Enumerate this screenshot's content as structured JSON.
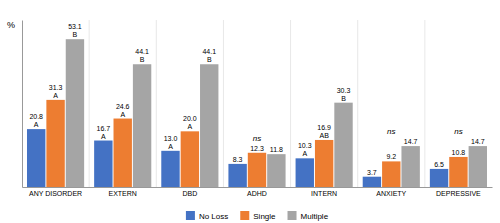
{
  "chart_data": {
    "type": "bar",
    "ylabel": "%",
    "categories": [
      "ANY DISORDER",
      "EXTERN",
      "DBD",
      "ADHD",
      "INTERN",
      "ANXIETY",
      "DEPRESSIVE"
    ],
    "series": [
      {
        "name": "No Loss",
        "color": "#4472C4",
        "values": [
          20.8,
          16.7,
          13.0,
          8.3,
          10.3,
          3.7,
          6.5
        ],
        "value_labels": [
          "20.8",
          "16.7",
          "13.0",
          "8.3",
          "10.3",
          "3.7",
          "6.5"
        ],
        "annotations": [
          "A",
          "A",
          "A",
          "ns",
          "A",
          "ns",
          "ns"
        ]
      },
      {
        "name": "Single",
        "color": "#ED7D31",
        "values": [
          31.3,
          24.6,
          20.0,
          12.3,
          16.9,
          9.2,
          10.8
        ],
        "value_labels": [
          "31.3",
          "24.6",
          "20.0",
          "12.3",
          "16.9",
          "9.2",
          "10.8"
        ],
        "annotations": [
          "A",
          "A",
          "A",
          "ns",
          "AB",
          "ns",
          "ns"
        ]
      },
      {
        "name": "Multiple",
        "color": "#A5A5A5",
        "values": [
          53.1,
          44.1,
          44.1,
          11.8,
          30.3,
          14.7,
          14.7
        ],
        "value_labels": [
          "53.1",
          "44.1",
          "44.1",
          "11.8",
          "30.3",
          "14.7",
          "14.7"
        ],
        "annotations": [
          "B",
          "B",
          "B",
          "ns",
          "B",
          "ns",
          "ns"
        ]
      }
    ],
    "ylim": [
      0,
      60
    ],
    "tick_labels": "x",
    "data_labels": true,
    "legend": "bottom"
  }
}
